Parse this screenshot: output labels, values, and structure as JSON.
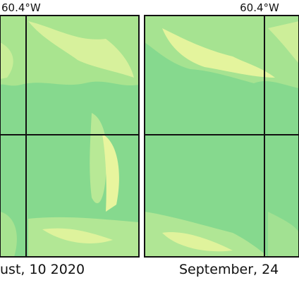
{
  "panels": [
    {
      "lon_label": "60.4°W",
      "caption": "ust, 10 2020"
    },
    {
      "lon_label": "60.4°W",
      "caption": "September, 24"
    }
  ]
}
